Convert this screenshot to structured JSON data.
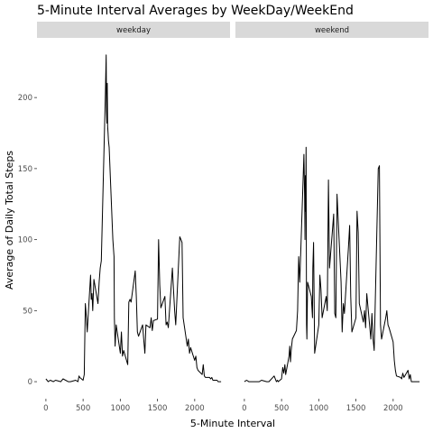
{
  "title": "5-Minute Interval Averages by WeekDay/WeekEnd",
  "chart_data": {
    "type": "line",
    "title": "5-Minute Interval Averages by WeekDay/WeekEnd",
    "xlabel": "5-Minute Interval",
    "ylabel": "Average of Daily Total Steps",
    "xlim": [
      -120,
      2475
    ],
    "ylim": [
      -12,
      242
    ],
    "x_ticks": [
      0,
      500,
      1000,
      1500,
      2000
    ],
    "x_tick_labels": [
      "0",
      "500",
      "1000",
      "1500",
      "2000"
    ],
    "y_ticks": [
      0,
      50,
      100,
      150,
      200
    ],
    "y_tick_labels": [
      "0",
      "50",
      "100",
      "150",
      "200"
    ],
    "grid": false,
    "panels": [
      {
        "label": "weekday",
        "series": [
          {
            "x": [
              0,
              30,
              60,
              100,
              130,
              200,
              230,
              300,
              330,
              400,
              430,
              445,
              455,
              500,
              515,
              530,
              545,
              555,
              600,
              610,
              620,
              630,
              645,
              700,
              715,
              730,
              745,
              800,
              810,
              815,
              820,
              825,
              830,
              835,
              840,
              850,
              900,
              915,
              920,
              930,
              945,
              1000,
              1015,
              1030,
              1045,
              1100,
              1115,
              1130,
              1145,
              1200,
              1215,
              1230,
              1245,
              1300,
              1315,
              1330,
              1345,
              1400,
              1415,
              1430,
              1445,
              1500,
              1515,
              1530,
              1545,
              1600,
              1615,
              1630,
              1645,
              1700,
              1715,
              1730,
              1745,
              1800,
              1815,
              1830,
              1845,
              1900,
              1915,
              1930,
              1945,
              2000,
              2015,
              2030,
              2045,
              2100,
              2115,
              2130,
              2145,
              2200,
              2215,
              2230,
              2245,
              2300,
              2315,
              2330,
              2355
            ],
            "y": [
              2,
              0,
              1,
              0,
              1,
              0,
              2,
              0,
              0,
              1,
              0,
              4,
              3,
              1,
              5,
              55,
              45,
              35,
              75,
              58,
              62,
              50,
              72,
              55,
              70,
              80,
              85,
              205,
              230,
              190,
              182,
              210,
              180,
              175,
              170,
              165,
              100,
              88,
              45,
              25,
              40,
              20,
              35,
              18,
              22,
              12,
              56,
              58,
              56,
              78,
              60,
              35,
              32,
              40,
              30,
              20,
              40,
              38,
              45,
              36,
              43,
              44,
              100,
              68,
              52,
              60,
              40,
              42,
              38,
              80,
              65,
              50,
              40,
              102,
              100,
              98,
              45,
              25,
              30,
              20,
              24,
              15,
              18,
              10,
              8,
              5,
              12,
              4,
              3,
              3,
              2,
              3,
              1,
              1,
              0,
              0,
              0
            ]
          }
        ]
      },
      {
        "label": "weekend",
        "series": [
          {
            "x": [
              0,
              30,
              60,
              100,
              130,
              200,
              230,
              300,
              330,
              400,
              430,
              445,
              455,
              500,
              515,
              530,
              545,
              555,
              600,
              610,
              620,
              630,
              645,
              700,
              715,
              730,
              745,
              800,
              810,
              815,
              820,
              825,
              830,
              835,
              840,
              850,
              900,
              915,
              920,
              930,
              945,
              1000,
              1015,
              1030,
              1045,
              1100,
              1115,
              1130,
              1145,
              1200,
              1215,
              1230,
              1245,
              1300,
              1315,
              1330,
              1345,
              1400,
              1415,
              1430,
              1445,
              1500,
              1515,
              1530,
              1545,
              1600,
              1615,
              1630,
              1645,
              1700,
              1715,
              1730,
              1745,
              1800,
              1815,
              1830,
              1845,
              1900,
              1915,
              1930,
              1945,
              2000,
              2015,
              2030,
              2045,
              2100,
              2115,
              2130,
              2145,
              2200,
              2215,
              2230,
              2245,
              2300,
              2315,
              2330,
              2355
            ],
            "y": [
              0,
              1,
              0,
              0,
              0,
              0,
              1,
              0,
              0,
              4,
              0,
              1,
              0,
              2,
              10,
              6,
              12,
              5,
              18,
              25,
              14,
              22,
              30,
              36,
              50,
              88,
              70,
              160,
              130,
              100,
              145,
              120,
              165,
              40,
              30,
              70,
              60,
              45,
              80,
              98,
              20,
              40,
              75,
              65,
              45,
              60,
              50,
              142,
              80,
              118,
              48,
              45,
              132,
              70,
              35,
              55,
              48,
              95,
              110,
              60,
              35,
              45,
              120,
              105,
              55,
              42,
              50,
              38,
              62,
              30,
              48,
              30,
              22,
              150,
              152,
              40,
              30,
              45,
              50,
              40,
              38,
              28,
              15,
              8,
              4,
              3,
              2,
              6,
              3,
              8,
              2,
              5,
              0,
              0,
              0,
              0,
              0
            ]
          }
        ]
      }
    ]
  }
}
